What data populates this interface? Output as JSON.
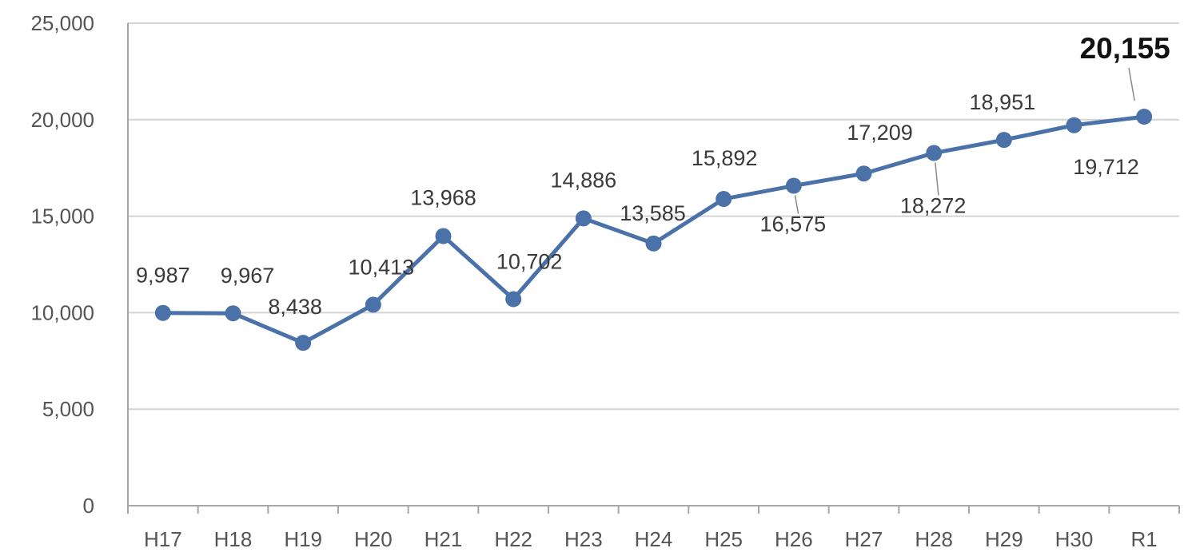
{
  "chart_data": {
    "type": "line",
    "title": "",
    "xlabel": "",
    "ylabel": "",
    "categories": [
      "H17",
      "H18",
      "H19",
      "H20",
      "H21",
      "H22",
      "H23",
      "H24",
      "H25",
      "H26",
      "H27",
      "H28",
      "H29",
      "H30",
      "R1"
    ],
    "series": [
      {
        "values": [
          9987,
          9967,
          8438,
          10413,
          13968,
          10702,
          14886,
          13585,
          15892,
          16575,
          17209,
          18272,
          18951,
          19712,
          20155
        ]
      }
    ],
    "data_labels": [
      "9,987",
      "9,967",
      "8,438",
      "10,413",
      "13,968",
      "10,702",
      "14,886",
      "13,585",
      "15,892",
      "16,575",
      "17,209",
      "18,272",
      "18,951",
      "19,712",
      "20,155"
    ],
    "highlighted_label": "R1",
    "ylim": [
      0,
      25000
    ],
    "yticks": [
      0,
      5000,
      10000,
      15000,
      20000,
      25000
    ],
    "ytick_labels": [
      "0",
      "5,000",
      "10,000",
      "15,000",
      "20,000",
      "25,000"
    ],
    "grid": "horizontal",
    "legend": "none",
    "colors": {
      "line": "#4a72a8",
      "marker": "#4a72a8",
      "grid": "#d4d4d4",
      "axis": "#a6a6a6"
    }
  }
}
